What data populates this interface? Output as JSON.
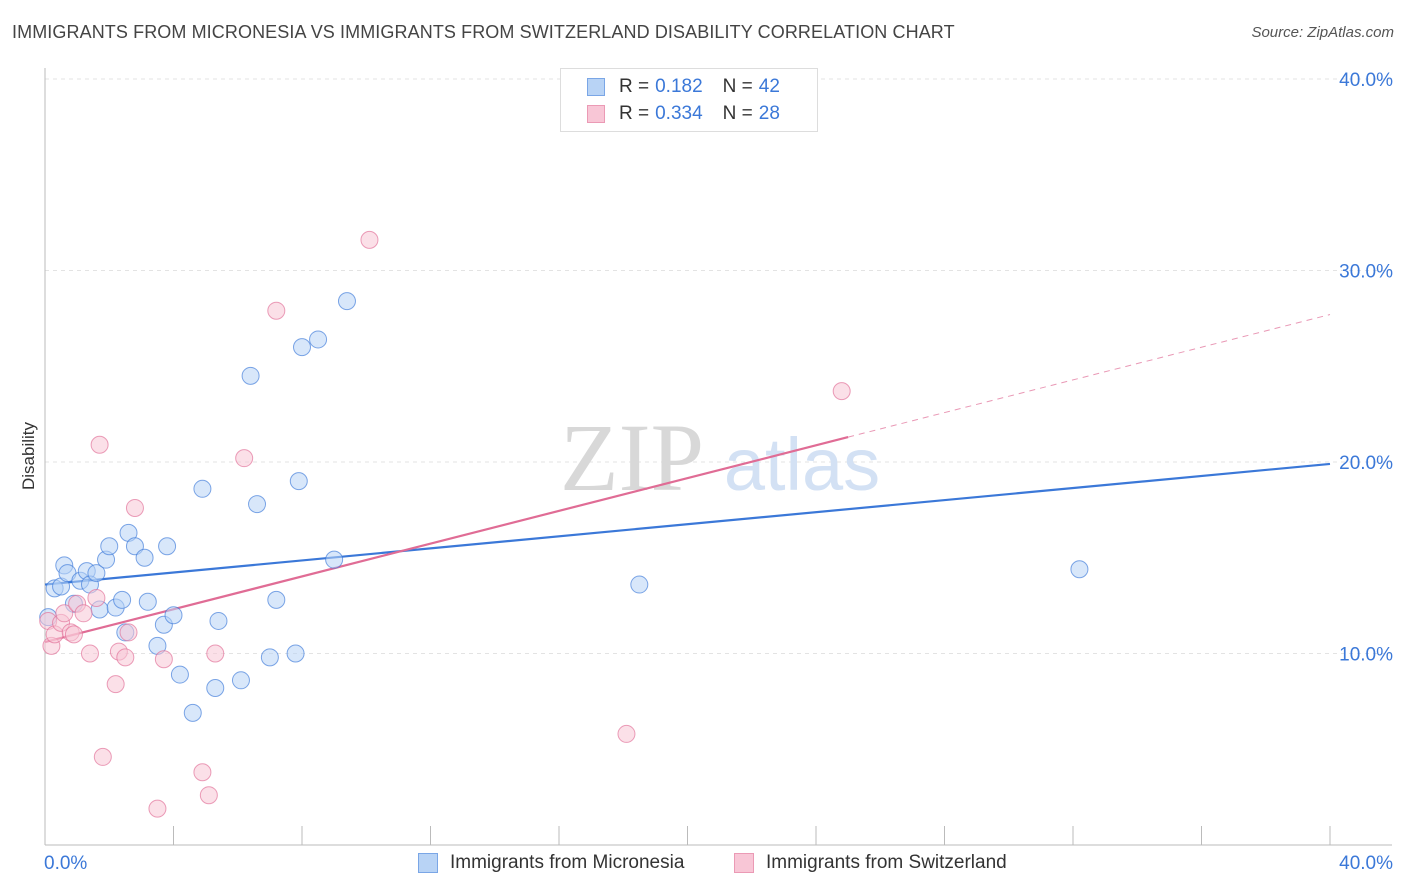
{
  "title": "IMMIGRANTS FROM MICRONESIA VS IMMIGRANTS FROM SWITZERLAND DISABILITY CORRELATION CHART",
  "source": "Source: ZipAtlas.com",
  "watermark": {
    "zip": "ZIP",
    "atlas": "atlas"
  },
  "legend_top": [
    {
      "r_label": "R =",
      "r_value": "0.182",
      "n_label": "N =",
      "n_value": "42",
      "color": "#9ec2f0"
    },
    {
      "r_label": "R =",
      "r_value": "0.334",
      "n_label": "N =",
      "n_value": "28",
      "color": "#f5b8c9"
    }
  ],
  "chart_data": {
    "type": "scatter",
    "title": "IMMIGRANTS FROM MICRONESIA VS IMMIGRANTS FROM SWITZERLAND DISABILITY CORRELATION CHART",
    "xlabel": "",
    "ylabel": "Disability",
    "xlim": [
      0,
      40
    ],
    "ylim": [
      0,
      40
    ],
    "x_tick_labels": [
      "0.0%",
      "40.0%"
    ],
    "y_tick_labels": [
      "10.0%",
      "20.0%",
      "30.0%",
      "40.0%"
    ],
    "y_ticks": [
      10,
      20,
      30,
      40
    ],
    "grid": true,
    "legend_placement": "bottom",
    "series": [
      {
        "name": "Immigrants from Micronesia",
        "color": "#3b78d8",
        "fill": "#b8d3f5",
        "trend": {
          "x": [
            0,
            40
          ],
          "y": [
            13.6,
            19.9
          ]
        },
        "points": [
          [
            0.1,
            11.9
          ],
          [
            0.3,
            13.4
          ],
          [
            0.5,
            13.5
          ],
          [
            0.6,
            14.6
          ],
          [
            0.7,
            14.2
          ],
          [
            0.9,
            12.6
          ],
          [
            1.1,
            13.8
          ],
          [
            1.3,
            14.3
          ],
          [
            1.4,
            13.6
          ],
          [
            1.6,
            14.2
          ],
          [
            1.7,
            12.3
          ],
          [
            1.9,
            14.9
          ],
          [
            2.0,
            15.6
          ],
          [
            2.2,
            12.4
          ],
          [
            2.4,
            12.8
          ],
          [
            2.5,
            11.1
          ],
          [
            2.6,
            16.3
          ],
          [
            2.8,
            15.6
          ],
          [
            3.1,
            15.0
          ],
          [
            3.2,
            12.7
          ],
          [
            3.5,
            10.4
          ],
          [
            3.7,
            11.5
          ],
          [
            3.8,
            15.6
          ],
          [
            4.0,
            12.0
          ],
          [
            4.2,
            8.9
          ],
          [
            4.6,
            6.9
          ],
          [
            4.9,
            18.6
          ],
          [
            5.3,
            8.2
          ],
          [
            5.4,
            11.7
          ],
          [
            6.1,
            8.6
          ],
          [
            6.4,
            24.5
          ],
          [
            6.6,
            17.8
          ],
          [
            7.0,
            9.8
          ],
          [
            7.2,
            12.8
          ],
          [
            7.8,
            10.0
          ],
          [
            7.9,
            19.0
          ],
          [
            8.0,
            26.0
          ],
          [
            8.5,
            26.4
          ],
          [
            9.0,
            14.9
          ],
          [
            9.4,
            28.4
          ],
          [
            18.5,
            13.6
          ],
          [
            32.2,
            14.4
          ]
        ]
      },
      {
        "name": "Immigrants from Switzerland",
        "color": "#e06c95",
        "fill": "#f8c6d6",
        "trend": {
          "x": [
            0,
            25
          ],
          "y": [
            10.6,
            21.3
          ]
        },
        "trend_dashed": {
          "x": [
            25,
            40
          ],
          "y": [
            21.3,
            27.7
          ]
        },
        "points": [
          [
            0.1,
            11.7
          ],
          [
            0.2,
            10.4
          ],
          [
            0.3,
            11.0
          ],
          [
            0.5,
            11.6
          ],
          [
            0.6,
            12.1
          ],
          [
            0.8,
            11.1
          ],
          [
            0.9,
            11.0
          ],
          [
            1.0,
            12.6
          ],
          [
            1.2,
            12.1
          ],
          [
            1.4,
            10.0
          ],
          [
            1.6,
            12.9
          ],
          [
            1.7,
            20.9
          ],
          [
            1.8,
            4.6
          ],
          [
            2.2,
            8.4
          ],
          [
            2.3,
            10.1
          ],
          [
            2.5,
            9.8
          ],
          [
            2.6,
            11.1
          ],
          [
            2.8,
            17.6
          ],
          [
            3.5,
            1.9
          ],
          [
            3.7,
            9.7
          ],
          [
            4.9,
            3.8
          ],
          [
            5.1,
            2.6
          ],
          [
            5.3,
            10.0
          ],
          [
            6.2,
            20.2
          ],
          [
            7.2,
            27.9
          ],
          [
            10.1,
            31.6
          ],
          [
            18.1,
            5.8
          ],
          [
            24.8,
            23.7
          ]
        ]
      }
    ]
  }
}
